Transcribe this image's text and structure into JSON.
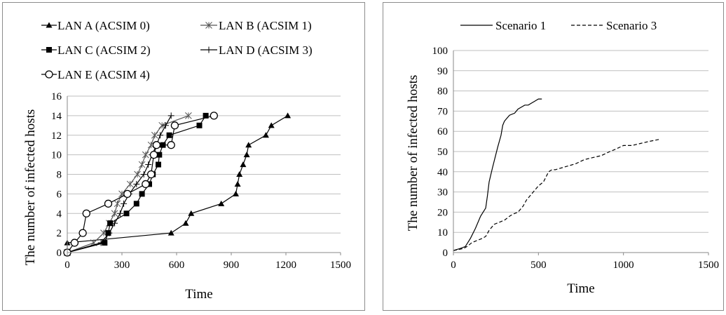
{
  "left_chart": {
    "legend": [
      "LAN A (ACSIM 0)",
      "LAN B (ACSIM 1)",
      "LAN C (ACSIM 2)",
      "LAN D (ACSIM 3)",
      "LAN E (ACSIM 4)"
    ],
    "xlabel": "Time",
    "ylabel": "The number of infected hosts",
    "xticks": [
      "0",
      "300",
      "600",
      "900",
      "1200",
      "1500"
    ],
    "yticks": [
      "0",
      "2",
      "4",
      "6",
      "8",
      "10",
      "12",
      "14",
      "16"
    ]
  },
  "right_chart": {
    "legend": [
      "Scenario 1",
      "Scenario 3"
    ],
    "xlabel": "Time",
    "ylabel": "The number of infected hosts",
    "xticks": [
      "0",
      "500",
      "1000",
      "1500"
    ],
    "yticks": [
      "0",
      "10",
      "20",
      "30",
      "40",
      "50",
      "60",
      "70",
      "80",
      "90",
      "100"
    ]
  },
  "chart_data": [
    {
      "type": "line",
      "xlabel": "Time",
      "ylabel": "The number of infected hosts",
      "xlim": [
        0,
        1500
      ],
      "ylim": [
        0,
        16
      ],
      "grid": "horizontal",
      "legend_position": "top",
      "series": [
        {
          "name": "LAN A (ACSIM 0)",
          "marker": "triangle",
          "x": [
            0,
            0,
            570,
            650,
            680,
            845,
            925,
            935,
            945,
            965,
            985,
            995,
            1090,
            1120,
            1210
          ],
          "y": [
            0,
            1,
            2,
            3,
            4,
            5,
            6,
            7,
            8,
            9,
            10,
            11,
            12,
            13,
            14
          ]
        },
        {
          "name": "LAN B (ACSIM 1)",
          "marker": "star",
          "x": [
            0,
            0,
            145,
            200,
            230,
            260,
            275,
            300,
            345,
            385,
            410,
            430,
            460,
            480,
            520,
            665
          ],
          "y": [
            0,
            0,
            1,
            2,
            3,
            4,
            5,
            6,
            7,
            8,
            9,
            10,
            11,
            12,
            13,
            14
          ]
        },
        {
          "name": "LAN C (ACSIM 2)",
          "marker": "square",
          "x": [
            0,
            0,
            205,
            225,
            235,
            325,
            380,
            410,
            450,
            470,
            500,
            505,
            525,
            560,
            725,
            760
          ],
          "y": [
            0,
            0,
            1,
            2,
            3,
            4,
            5,
            6,
            7,
            8,
            9,
            10,
            11,
            12,
            13,
            14
          ]
        },
        {
          "name": "LAN D (ACSIM 3)",
          "marker": "plus",
          "x": [
            0,
            0,
            185,
            230,
            260,
            290,
            310,
            340,
            380,
            420,
            445,
            465,
            490,
            510,
            540,
            570
          ],
          "y": [
            0,
            0,
            1,
            2,
            3,
            4,
            5,
            6,
            7,
            8,
            9,
            10,
            11,
            12,
            13,
            14
          ]
        },
        {
          "name": "LAN E (ACSIM 4)",
          "marker": "circle",
          "x": [
            0,
            40,
            85,
            105,
            225,
            330,
            430,
            460,
            475,
            490,
            570,
            590,
            805
          ],
          "y": [
            0,
            1,
            2,
            4,
            5,
            6,
            7,
            8,
            10,
            11,
            11,
            13,
            14
          ]
        }
      ]
    },
    {
      "type": "line",
      "xlabel": "Time",
      "ylabel": "The number of infected hosts",
      "xlim": [
        0,
        1500
      ],
      "ylim": [
        0,
        100
      ],
      "grid": "horizontal",
      "legend_position": "top",
      "series": [
        {
          "name": "Scenario 1",
          "style": "solid",
          "x": [
            0,
            40,
            70,
            100,
            130,
            160,
            190,
            200,
            210,
            230,
            260,
            280,
            290,
            300,
            310,
            330,
            360,
            380,
            400,
            420,
            440,
            460,
            480,
            500,
            520
          ],
          "y": [
            1,
            2,
            3,
            7,
            12,
            18,
            22,
            28,
            35,
            42,
            52,
            58,
            63,
            65,
            66,
            68,
            69,
            71,
            72,
            73,
            73,
            74,
            75,
            76,
            76
          ]
        },
        {
          "name": "Scenario 3",
          "style": "dashed",
          "x": [
            0,
            60,
            80,
            110,
            140,
            170,
            190,
            210,
            240,
            270,
            300,
            330,
            350,
            380,
            410,
            430,
            460,
            480,
            500,
            530,
            560,
            580,
            600,
            640,
            680,
            720,
            770,
            820,
            870,
            920,
            950,
            1000,
            1050,
            1100,
            1150,
            1210
          ],
          "y": [
            1,
            2,
            3,
            5,
            6,
            7,
            8,
            11,
            14,
            15,
            16,
            18,
            19,
            20,
            23,
            26,
            29,
            31,
            33,
            35,
            40,
            41,
            41,
            42,
            43,
            44,
            46,
            47,
            48,
            50,
            51,
            53,
            53,
            54,
            55,
            56
          ]
        }
      ]
    }
  ]
}
